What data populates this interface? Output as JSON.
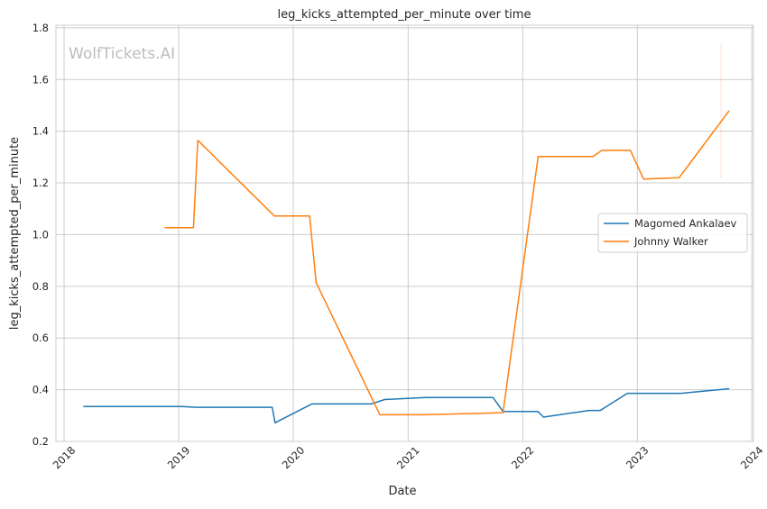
{
  "chart_data": {
    "type": "line",
    "title": "leg_kicks_attempted_per_minute over time",
    "xlabel": "Date",
    "ylabel": "leg_kicks_attempted_per_minute",
    "watermark": "WolfTickets.AI",
    "grid": true,
    "legend_position": "center-right",
    "xlim": [
      "2017-12-06",
      "2024-01-06"
    ],
    "ylim": [
      0.2,
      1.81
    ],
    "x_ticks": [
      "2018",
      "2019",
      "2020",
      "2021",
      "2022",
      "2023",
      "2024"
    ],
    "y_ticks": [
      "0.2",
      "0.4",
      "0.6",
      "0.8",
      "1.0",
      "1.2",
      "1.4",
      "1.6",
      "1.8"
    ],
    "series": [
      {
        "name": "Magomed Ankalaev",
        "color": "#1f77b4",
        "points": [
          [
            "2018-03-03",
            0.335
          ],
          [
            "2019-01-12",
            0.335
          ],
          [
            "2019-02-26",
            0.332
          ],
          [
            "2019-10-26",
            0.332
          ],
          [
            "2019-11-04",
            0.272
          ],
          [
            "2020-02-29",
            0.345
          ],
          [
            "2020-09-05",
            0.345
          ],
          [
            "2020-10-18",
            0.362
          ],
          [
            "2021-02-26",
            0.37
          ],
          [
            "2021-09-28",
            0.37
          ],
          [
            "2021-10-30",
            0.316
          ],
          [
            "2022-02-18",
            0.316
          ],
          [
            "2022-03-08",
            0.294
          ],
          [
            "2022-07-31",
            0.32
          ],
          [
            "2022-09-05",
            0.32
          ],
          [
            "2022-11-30",
            0.386
          ],
          [
            "2023-05-20",
            0.386
          ],
          [
            "2023-10-21",
            0.404
          ]
        ]
      },
      {
        "name": "Johnny Walker",
        "color": "#ff7f0e",
        "points": [
          [
            "2018-11-17",
            1.027
          ],
          [
            "2019-02-17",
            1.027
          ],
          [
            "2019-03-03",
            1.365
          ],
          [
            "2019-11-02",
            1.072
          ],
          [
            "2020-02-22",
            1.072
          ],
          [
            "2020-03-14",
            0.814
          ],
          [
            "2020-10-03",
            0.303
          ],
          [
            "2021-02-20",
            0.303
          ],
          [
            "2021-10-30",
            0.311
          ],
          [
            "2022-02-19",
            1.302
          ],
          [
            "2022-08-13",
            1.302
          ],
          [
            "2022-09-10",
            1.326
          ],
          [
            "2022-12-10",
            1.326
          ],
          [
            "2023-01-21",
            1.215
          ],
          [
            "2023-05-14",
            1.22
          ],
          [
            "2023-10-21",
            1.48
          ]
        ]
      }
    ]
  }
}
